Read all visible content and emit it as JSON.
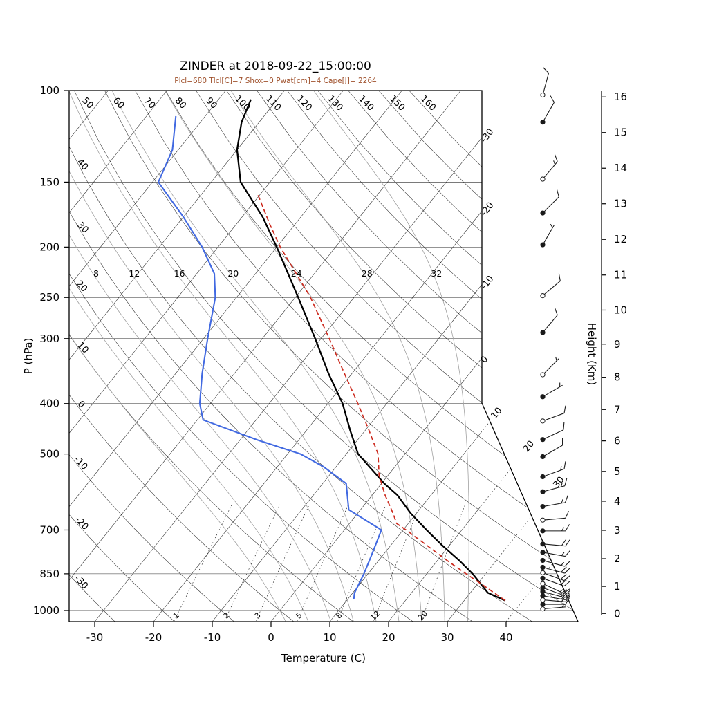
{
  "title": "ZINDER at 2018-09-22_15:00:00",
  "subtitle": "Plcl=680 Tlcl[C]=7 Shox=0 Pwat[cm]=4 Cape[J]= 2264",
  "indices": {
    "Plcl": 680,
    "Tlcl_C": 7,
    "Shox": 0,
    "Pwat_cm": 4,
    "Cape_J": 2264
  },
  "axes": {
    "pressure_label": "P (hPa)",
    "temperature_label": "Temperature (C)",
    "height_label": "Height (Km)",
    "pressure_ticks": [
      100,
      150,
      200,
      250,
      300,
      400,
      500,
      700,
      850,
      1000
    ],
    "temperature_ticks": [
      -30,
      -20,
      -10,
      0,
      10,
      20,
      30,
      40
    ],
    "height_ticks": [
      0,
      1,
      2,
      3,
      4,
      5,
      6,
      7,
      8,
      9,
      10,
      11,
      12,
      13,
      14,
      15,
      16
    ],
    "pressure_range_hPa": [
      100,
      1050
    ],
    "grid": "skewed 45-deg isotherms, dry/moist adiabats, mixing-ratio lines"
  },
  "chart_data": {
    "type": "line",
    "subtype": "skewT-logP sounding",
    "station": "ZINDER",
    "time": "2018-09-22_15:00:00",
    "dry_adiabat_left_labels": [
      40,
      30,
      20,
      10,
      0,
      -10,
      -20,
      -30
    ],
    "dry_adiabat_top_labels": [
      50,
      60,
      70,
      80,
      90,
      100,
      110,
      120,
      130,
      140,
      150,
      160
    ],
    "isotherm_right_labels": [
      -30,
      -20,
      -10,
      0
    ],
    "isotherm_ext_labels": [
      10,
      20,
      30
    ],
    "moist_adiabat_labels": [
      8,
      12,
      16,
      20,
      24,
      28,
      32
    ],
    "mixing_ratio_labels": [
      1,
      2,
      3,
      5,
      8,
      12,
      20
    ],
    "series": [
      {
        "name": "temperature",
        "color_key": "temperature",
        "points": [
          [
            957,
            37
          ],
          [
            925,
            33
          ],
          [
            850,
            27.8
          ],
          [
            800,
            23.6
          ],
          [
            750,
            18.8
          ],
          [
            700,
            14
          ],
          [
            650,
            9
          ],
          [
            600,
            4.3
          ],
          [
            570,
            0.5
          ],
          [
            500,
            -8
          ],
          [
            450,
            -12.6
          ],
          [
            400,
            -17.5
          ],
          [
            350,
            -24
          ],
          [
            300,
            -31
          ],
          [
            250,
            -39.5
          ],
          [
            200,
            -50
          ],
          [
            175,
            -56.5
          ],
          [
            150,
            -65
          ],
          [
            130,
            -70
          ],
          [
            115,
            -73
          ],
          [
            104,
            -74.5
          ]
        ]
      },
      {
        "name": "dewpoint",
        "color_key": "dewpoint",
        "points": [
          [
            950,
            11
          ],
          [
            925,
            10.3
          ],
          [
            850,
            9.3
          ],
          [
            800,
            8.4
          ],
          [
            750,
            7.4
          ],
          [
            700,
            6.3
          ],
          [
            640,
            -2
          ],
          [
            570,
            -6
          ],
          [
            530,
            -12
          ],
          [
            500,
            -17.8
          ],
          [
            470,
            -27
          ],
          [
            430,
            -39
          ],
          [
            400,
            -41.8
          ],
          [
            350,
            -45.5
          ],
          [
            300,
            -49.3
          ],
          [
            250,
            -53.6
          ],
          [
            225,
            -57
          ],
          [
            200,
            -62.7
          ],
          [
            175,
            -70
          ],
          [
            150,
            -79
          ],
          [
            130,
            -81
          ],
          [
            112,
            -85
          ]
        ]
      },
      {
        "name": "parcel",
        "color_key": "parcel",
        "points": [
          [
            957,
            37
          ],
          [
            900,
            31.7
          ],
          [
            850,
            26.7
          ],
          [
            800,
            21.5
          ],
          [
            750,
            16.2
          ],
          [
            700,
            10.5
          ],
          [
            680,
            8
          ],
          [
            650,
            6
          ],
          [
            600,
            2.2
          ],
          [
            550,
            -1.5
          ],
          [
            500,
            -4.6
          ],
          [
            450,
            -9.4
          ],
          [
            400,
            -14.9
          ],
          [
            350,
            -21.3
          ],
          [
            300,
            -28.6
          ],
          [
            250,
            -37.4
          ],
          [
            200,
            -49.4
          ],
          [
            180,
            -54.5
          ],
          [
            158,
            -60.5
          ]
        ]
      }
    ],
    "wind_barbs": [
      {
        "p": 102,
        "spd": 10,
        "dir": 15,
        "filled": false
      },
      {
        "p": 115,
        "spd": 10,
        "dir": 30,
        "filled": true
      },
      {
        "p": 148,
        "spd": 15,
        "dir": 40,
        "filled": false
      },
      {
        "p": 172,
        "spd": 10,
        "dir": 45,
        "filled": true
      },
      {
        "p": 198,
        "spd": 5,
        "dir": 30,
        "filled": true
      },
      {
        "p": 248,
        "spd": 10,
        "dir": 50,
        "filled": false
      },
      {
        "p": 292,
        "spd": 10,
        "dir": 40,
        "filled": true
      },
      {
        "p": 352,
        "spd": 5,
        "dir": 45,
        "filled": false
      },
      {
        "p": 388,
        "spd": 5,
        "dir": 60,
        "filled": true
      },
      {
        "p": 432,
        "spd": 10,
        "dir": 70,
        "filled": false
      },
      {
        "p": 469,
        "spd": 10,
        "dir": 65,
        "filled": true
      },
      {
        "p": 506,
        "spd": 10,
        "dir": 60,
        "filled": true
      },
      {
        "p": 553,
        "spd": 15,
        "dir": 70,
        "filled": true
      },
      {
        "p": 591,
        "spd": 15,
        "dir": 75,
        "filled": true
      },
      {
        "p": 631,
        "spd": 15,
        "dir": 80,
        "filled": true
      },
      {
        "p": 670,
        "spd": 10,
        "dir": 85,
        "filled": false
      },
      {
        "p": 703,
        "spd": 15,
        "dir": 90,
        "filled": true
      },
      {
        "p": 745,
        "spd": 20,
        "dir": 95,
        "filled": true
      },
      {
        "p": 773,
        "spd": 15,
        "dir": 100,
        "filled": true
      },
      {
        "p": 801,
        "spd": 15,
        "dir": 105,
        "filled": true
      },
      {
        "p": 826,
        "spd": 20,
        "dir": 105,
        "filled": true
      },
      {
        "p": 846,
        "spd": 20,
        "dir": 110,
        "filled": false
      },
      {
        "p": 867,
        "spd": 20,
        "dir": 110,
        "filled": true
      },
      {
        "p": 888,
        "spd": 15,
        "dir": 115,
        "filled": false
      },
      {
        "p": 904,
        "spd": 20,
        "dir": 110,
        "filled": true
      },
      {
        "p": 920,
        "spd": 20,
        "dir": 105,
        "filled": true
      },
      {
        "p": 937,
        "spd": 20,
        "dir": 100,
        "filled": true
      },
      {
        "p": 954,
        "spd": 15,
        "dir": 95,
        "filled": false
      },
      {
        "p": 973,
        "spd": 10,
        "dir": 90,
        "filled": true
      },
      {
        "p": 993,
        "spd": 5,
        "dir": 85,
        "filled": false
      }
    ]
  },
  "colors": {
    "temperature": "#000000",
    "dewpoint": "#4169e1",
    "parcel": "#cc2a1e",
    "subtitle": "#a0522d",
    "grid": "#2b2b2b",
    "moist_adiabat": "#a0a0a0",
    "axis": "#000000"
  }
}
